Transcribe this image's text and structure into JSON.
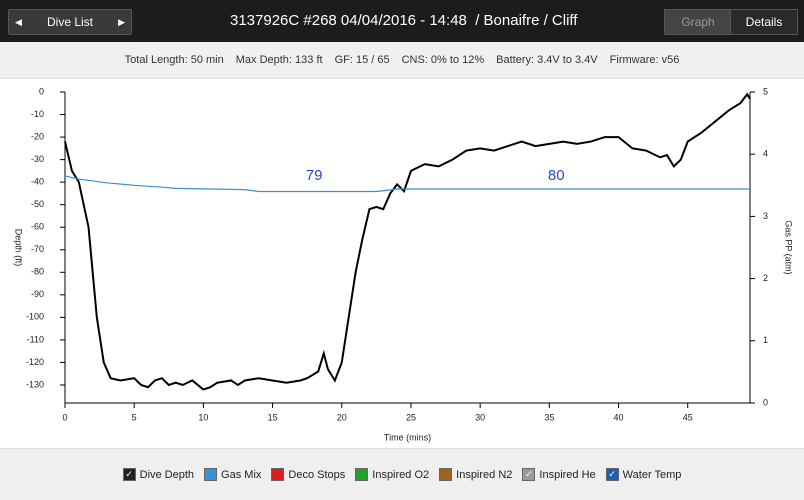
{
  "header": {
    "back_button": "Dive List",
    "title": "3137926C #268 04/04/2016 - 14:48  / Bonaifre / Cliff",
    "tabs": [
      "Graph",
      "Details"
    ]
  },
  "info": [
    "Total Length: 50 min",
    "Max Depth: 133 ft",
    "GF: 15 / 65",
    "CNS: 0% to 12%",
    "Battery: 3.4V to 3.4V",
    "Firmware: v56"
  ],
  "chart_data": {
    "type": "line",
    "x_label": "Time (mins)",
    "y_label": "Depth (ft)",
    "y2_label": "Gas PP (atm)",
    "xlim": [
      0,
      49.5
    ],
    "xticks": [
      0,
      5,
      10,
      15,
      20,
      25,
      30,
      35,
      40,
      45
    ],
    "ylim": [
      -138,
      0
    ],
    "yticks": [
      0,
      -10,
      -20,
      -30,
      -40,
      -50,
      -60,
      -70,
      -80,
      -90,
      -100,
      -110,
      -120,
      -130
    ],
    "y2lim": [
      0,
      5
    ],
    "y2ticks": [
      0,
      1,
      2,
      3,
      4,
      5
    ],
    "series": [
      {
        "name": "Dive Depth",
        "color": "#000000",
        "checked": true,
        "x": [
          0,
          0.5,
          1,
          1.7,
          2,
          2.3,
          2.8,
          3.3,
          4,
          5,
          5.5,
          6,
          6.5,
          7,
          7.5,
          8,
          8.5,
          9.2,
          10,
          10.5,
          11,
          12,
          12.5,
          13,
          14,
          15,
          16,
          17,
          17.5,
          18.3,
          18.7,
          19,
          19.5,
          20,
          20.5,
          21,
          21.5,
          22,
          22.5,
          23,
          23.5,
          24,
          24.5,
          25,
          26,
          27,
          28,
          29,
          30,
          31,
          32,
          33,
          34,
          35,
          36,
          37,
          38,
          39,
          40,
          41,
          42,
          43,
          43.5,
          44,
          44.5,
          45,
          46,
          47,
          48,
          48.8,
          49.3,
          49.5
        ],
        "values": [
          -22,
          -35,
          -40,
          -60,
          -80,
          -100,
          -120,
          -127,
          -128,
          -127,
          -130,
          -131,
          -128,
          -127,
          -130,
          -129,
          -130,
          -128,
          -132,
          -131,
          -129,
          -128,
          -130,
          -128,
          -127,
          -128,
          -129,
          -128,
          -127,
          -124,
          -116,
          -123,
          -128,
          -120,
          -100,
          -80,
          -65,
          -52,
          -51,
          -52,
          -45,
          -41,
          -44,
          -35,
          -32,
          -33,
          -30,
          -26,
          -25,
          -26,
          -24,
          -22,
          -24,
          -23,
          -22,
          -23,
          -22,
          -20,
          -20,
          -25,
          -26,
          -29,
          -28,
          -33,
          -30,
          -22,
          -18,
          -13,
          -8,
          -5,
          -1,
          -3
        ]
      },
      {
        "name": "Gas Mix",
        "color": "#3b8fd4",
        "checked": false,
        "axis": "y2",
        "x": [
          0,
          1,
          2,
          3,
          5,
          7,
          8,
          13,
          14,
          22.5,
          24,
          49.5
        ],
        "values": [
          3.65,
          3.6,
          3.57,
          3.54,
          3.5,
          3.47,
          3.45,
          3.43,
          3.4,
          3.4,
          3.44,
          3.44
        ]
      }
    ],
    "annotations": [
      {
        "text": "79",
        "x": 18
      },
      {
        "text": "80",
        "x": 35.5
      }
    ],
    "toggles": [
      {
        "name": "Deco Stops",
        "color": "#d81e1e",
        "checked": false
      },
      {
        "name": "Inspired O2",
        "color": "#22a02a",
        "checked": false
      },
      {
        "name": "Inspired N2",
        "color": "#a0621a",
        "checked": false
      },
      {
        "name": "Inspired He",
        "color": "#9a9a9a",
        "checked": true
      },
      {
        "name": "Water Temp",
        "color": "#1f5fb0",
        "checked": true
      }
    ]
  }
}
